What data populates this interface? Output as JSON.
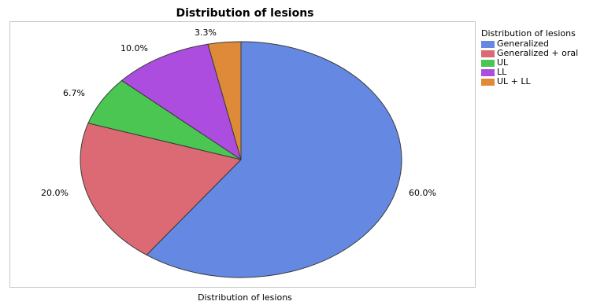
{
  "chart_data": {
    "type": "pie",
    "title": "Distribution of lesions",
    "xlabel": "Distribution of lesions",
    "legend_title": "Distribution of lesions",
    "legend_position": "right",
    "categories": [
      "Generalized",
      "Generalized + oral",
      "UL",
      "LL",
      "UL + LL"
    ],
    "values": [
      60.0,
      20.0,
      6.7,
      10.0,
      3.3
    ],
    "labels": [
      "60.0%",
      "20.0%",
      "6.7%",
      "10.0%",
      "3.3%"
    ],
    "colors": [
      "#6589e3",
      "#dc6a74",
      "#4cc653",
      "#ac4ddf",
      "#de8a38"
    ]
  }
}
